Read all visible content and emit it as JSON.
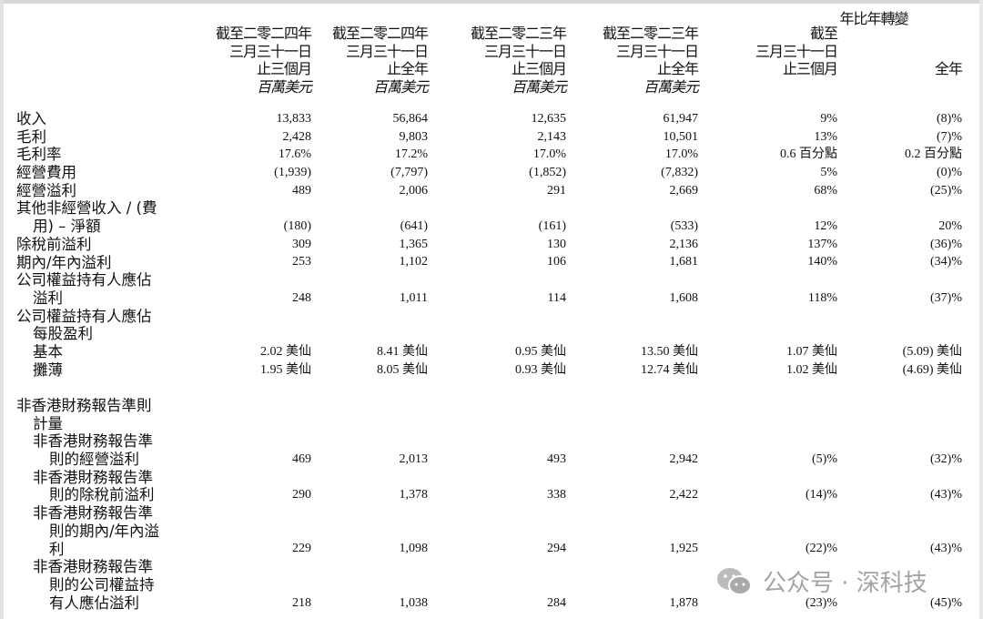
{
  "header": {
    "yoy_title": "年比年轉變",
    "columns": [
      {
        "lines": [
          "截至二零二四年",
          "三月三十一日",
          "止三個月"
        ],
        "unit": "百萬美元"
      },
      {
        "lines": [
          "截至二零二四年",
          "三月三十一日",
          "止全年"
        ],
        "unit": "百萬美元"
      },
      {
        "lines": [
          "截至二零二三年",
          "三月三十一日",
          "止三個月"
        ],
        "unit": "百萬美元"
      },
      {
        "lines": [
          "截至二零二三年",
          "三月三十一日",
          "止全年"
        ],
        "unit": "百萬美元"
      },
      {
        "lines": [
          "截至",
          "三月三十一日",
          "止三個月"
        ],
        "unit": ""
      },
      {
        "lines": [
          "",
          "",
          "全年"
        ],
        "unit": ""
      }
    ]
  },
  "rows": [
    {
      "label": [
        "收入"
      ],
      "indent": 0,
      "values": [
        "13,833",
        "56,864",
        "12,635",
        "61,947",
        "9%",
        "(8)%"
      ]
    },
    {
      "label": [
        "毛利"
      ],
      "indent": 0,
      "values": [
        "2,428",
        "9,803",
        "2,143",
        "10,501",
        "13%",
        "(7)%"
      ]
    },
    {
      "label": [
        "毛利率"
      ],
      "indent": 0,
      "values": [
        "17.6%",
        "17.2%",
        "17.0%",
        "17.0%",
        "0.6 百分點",
        "0.2 百分點"
      ]
    },
    {
      "label": [
        "經營費用"
      ],
      "indent": 0,
      "values": [
        "(1,939)",
        "(7,797)",
        "(1,852)",
        "(7,832)",
        "5%",
        "(0)%"
      ]
    },
    {
      "label": [
        "經營溢利"
      ],
      "indent": 0,
      "values": [
        "489",
        "2,006",
        "291",
        "2,669",
        "68%",
        "(25)%"
      ]
    },
    {
      "label": [
        "其他非經營收入 / (費",
        "用) – 淨額"
      ],
      "indent": 0,
      "values": [
        "(180)",
        "(641)",
        "(161)",
        "(533)",
        "12%",
        "20%"
      ]
    },
    {
      "label": [
        "除稅前溢利"
      ],
      "indent": 0,
      "values": [
        "309",
        "1,365",
        "130",
        "2,136",
        "137%",
        "(36)%"
      ]
    },
    {
      "label": [
        "期內/年內溢利"
      ],
      "indent": 0,
      "values": [
        "253",
        "1,102",
        "106",
        "1,681",
        "140%",
        "(34)%"
      ]
    },
    {
      "label": [
        "公司權益持有人應佔",
        "溢利"
      ],
      "indent": 0,
      "values": [
        "248",
        "1,011",
        "114",
        "1,608",
        "118%",
        "(37)%"
      ]
    },
    {
      "label": [
        "公司權益持有人應佔",
        "每股盈利"
      ],
      "indent": 0,
      "values": []
    },
    {
      "label": [
        "基本"
      ],
      "indent": 1,
      "values": [
        "2.02 美仙",
        "8.41 美仙",
        "0.95 美仙",
        "13.50 美仙",
        "1.07 美仙",
        "(5.09) 美仙"
      ]
    },
    {
      "label": [
        "攤薄"
      ],
      "indent": 1,
      "values": [
        "1.95 美仙",
        "8.05 美仙",
        "0.93 美仙",
        "12.74 美仙",
        "1.02 美仙",
        "(4.69) 美仙"
      ]
    },
    {
      "label": [
        ""
      ],
      "indent": 0,
      "values": []
    },
    {
      "label": [
        "非香港財務報告準則",
        "計量"
      ],
      "indent": 0,
      "values": []
    },
    {
      "label": [
        "非香港財務報告準",
        "則的經營溢利"
      ],
      "indent": 1,
      "values": [
        "469",
        "2,013",
        "493",
        "2,942",
        "(5)%",
        "(32)%"
      ]
    },
    {
      "label": [
        "非香港財務報告準",
        "則的除稅前溢利"
      ],
      "indent": 1,
      "values": [
        "290",
        "1,378",
        "338",
        "2,422",
        "(14)%",
        "(43)%"
      ]
    },
    {
      "label": [
        "非香港財務報告準",
        "則的期內/年內溢",
        "利"
      ],
      "indent": 1,
      "values": [
        "229",
        "1,098",
        "294",
        "1,925",
        "(22)%",
        "(43)%"
      ]
    },
    {
      "label": [
        "非香港財務報告準",
        "則的公司權益持",
        "有人應佔溢利"
      ],
      "indent": 1,
      "values": [
        "218",
        "1,038",
        "284",
        "1,878",
        "(23)%",
        "(45)%"
      ]
    }
  ],
  "watermark": {
    "text": "公众号 · 深科技",
    "icon": "wechat-icon"
  }
}
